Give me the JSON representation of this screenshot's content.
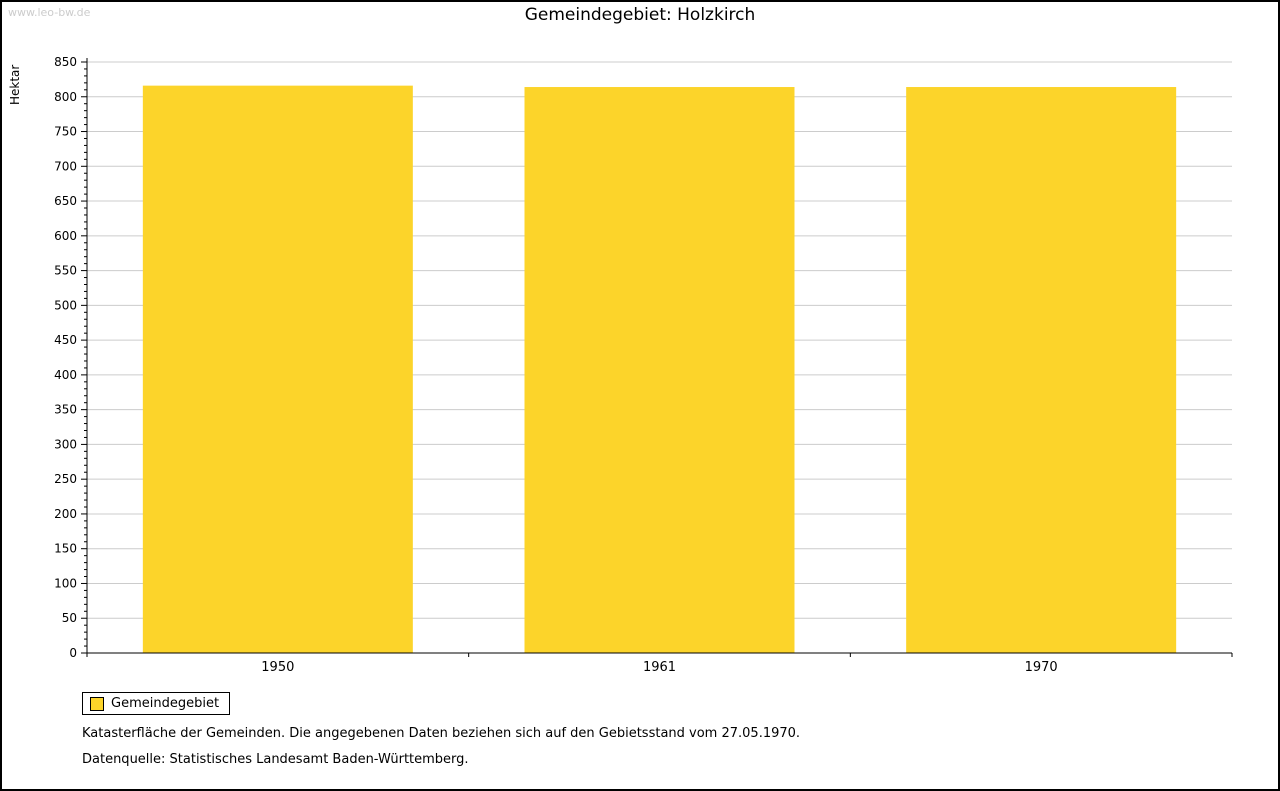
{
  "watermark": "www.leo-bw.de",
  "title": "Gemeindegebiet: Holzkirch",
  "legend": {
    "label": "Gemeindegebiet",
    "color": "#FCD42A"
  },
  "footer": {
    "line1": "Katasterfläche der Gemeinden. Die angegebenen Daten beziehen sich auf den Gebietsstand vom 27.05.1970.",
    "line2": "Datenquelle: Statistisches Landesamt Baden-Württemberg."
  },
  "chart_data": {
    "type": "bar",
    "title": "Gemeindegebiet: Holzkirch",
    "categories": [
      "1950",
      "1961",
      "1970"
    ],
    "series": [
      {
        "name": "Gemeindegebiet",
        "values": [
          816,
          814,
          814
        ]
      }
    ],
    "ylabel": "Hektar",
    "ylim": [
      0,
      850
    ],
    "ytick_step": 50,
    "yminor_step": 10,
    "grid": true,
    "bar_color": "#FCD42A",
    "grid_color": "#cccccc",
    "axis_color": "#000000",
    "legend_position": "bottom-left"
  }
}
